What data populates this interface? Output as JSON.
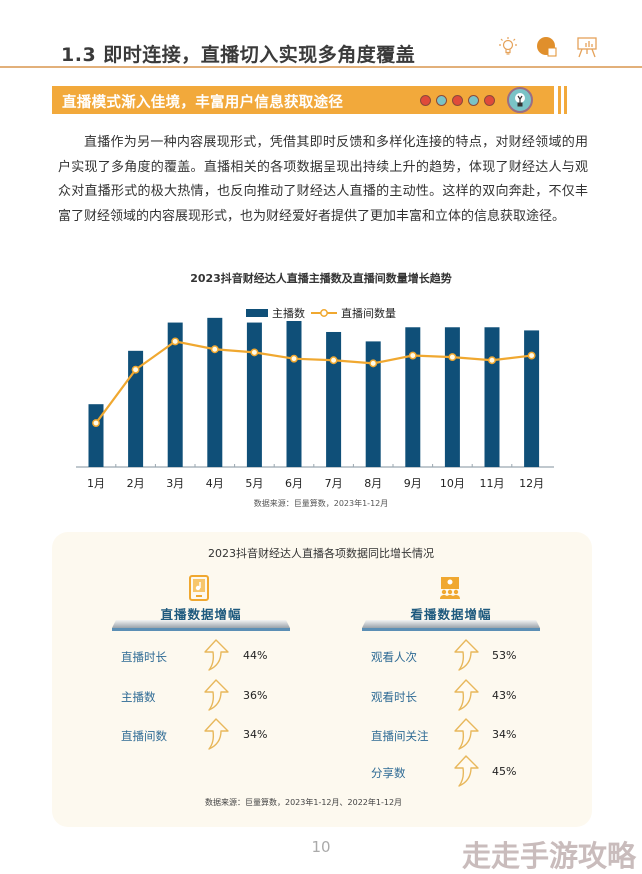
{
  "header": {
    "section_title": "1.3  即时连接，直播切入实现多角度覆盖",
    "icons": [
      "lightbulb-icon",
      "pie-chart-icon",
      "presentation-board-icon"
    ]
  },
  "banner": {
    "title": "直播模式渐入佳境，丰富用户信息获取途径",
    "dot_colors": [
      "#e04b3a",
      "#7ac3c6",
      "#e04b3a",
      "#7ac3c6",
      "#e04b3a"
    ],
    "accent_color": "#f2a93b",
    "icon": "lightbulb-icon"
  },
  "body": {
    "paragraph": "直播作为另一种内容展现形式，凭借其即时反馈和多样化连接的特点，对财经领域的用户实现了多角度的覆盖。直播相关的各项数据呈现出持续上升的趋势，体现了财经达人与观众对直播形式的极大热情，也反向推动了财经达人直播的主动性。这样的双向奔赴，不仅丰富了财经领域的内容展现形式，也为财经爱好者提供了更加丰富和立体的信息获取途径。"
  },
  "chart_data": {
    "type": "bar",
    "title": "2023抖音财经达人直播主播数及直播间数量增长趋势",
    "xlabel": "",
    "ylabel": "",
    "categories": [
      "1月",
      "2月",
      "3月",
      "4月",
      "5月",
      "6月",
      "7月",
      "8月",
      "9月",
      "10月",
      "11月",
      "12月"
    ],
    "series": [
      {
        "name": "主播数",
        "type": "bar",
        "color": "#0f4f78",
        "values": [
          40,
          74,
          92,
          95,
          92,
          93,
          86,
          80,
          89,
          89,
          89,
          87
        ]
      },
      {
        "name": "直播间数量",
        "type": "line",
        "color": "#f0a830",
        "values": [
          28,
          62,
          80,
          75,
          73,
          69,
          68,
          66,
          71,
          70,
          68,
          71
        ]
      }
    ],
    "ylim": [
      0,
      100
    ],
    "y_axis_shown": false,
    "grid": false,
    "legend_position": "top",
    "note": "Relative values (no y-axis shown; normalized to plot height)",
    "source": "数据来源：巨量算数，2023年1-12月"
  },
  "infographic": {
    "title": "2023抖音财经达人直播各项数据同比增长情况",
    "columns": [
      {
        "heading": "直播数据增幅",
        "icon": "mobile-music-icon",
        "rows": [
          {
            "label": "直播时长",
            "value": "44%"
          },
          {
            "label": "主播数",
            "value": "36%"
          },
          {
            "label": "直播间数",
            "value": "34%"
          }
        ]
      },
      {
        "heading": "看播数据增幅",
        "icon": "audience-screen-icon",
        "rows": [
          {
            "label": "观看人次",
            "value": "53%"
          },
          {
            "label": "观看时长",
            "value": "43%"
          },
          {
            "label": "直播间关注",
            "value": "34%"
          },
          {
            "label": "分享数",
            "value": "45%"
          }
        ]
      }
    ],
    "source": "数据来源：巨量算数，2023年1-12月、2022年1-12月"
  },
  "footer": {
    "page_number": "10",
    "watermark": "走走手游攻略"
  }
}
